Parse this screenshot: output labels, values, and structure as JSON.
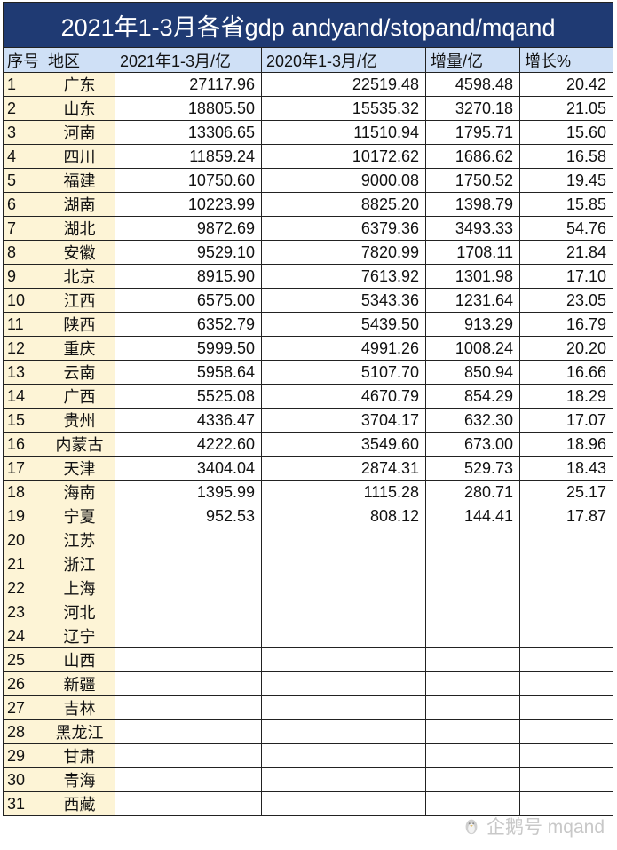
{
  "title": "2021年1-3月各省gdp andyand/stopand/mqand",
  "headers": [
    "序号",
    "地区",
    "2021年1-3月/亿",
    "2020年1-3月/亿",
    "增量/亿",
    "增长%"
  ],
  "rows": [
    {
      "idx": "1",
      "region": "广东",
      "v2021": "27117.96",
      "v2020": "22519.48",
      "inc": "4598.48",
      "growth": "20.42"
    },
    {
      "idx": "2",
      "region": "山东",
      "v2021": "18805.50",
      "v2020": "15535.32",
      "inc": "3270.18",
      "growth": "21.05"
    },
    {
      "idx": "3",
      "region": "河南",
      "v2021": "13306.65",
      "v2020": "11510.94",
      "inc": "1795.71",
      "growth": "15.60"
    },
    {
      "idx": "4",
      "region": "四川",
      "v2021": "11859.24",
      "v2020": "10172.62",
      "inc": "1686.62",
      "growth": "16.58"
    },
    {
      "idx": "5",
      "region": "福建",
      "v2021": "10750.60",
      "v2020": "9000.08",
      "inc": "1750.52",
      "growth": "19.45"
    },
    {
      "idx": "6",
      "region": "湖南",
      "v2021": "10223.99",
      "v2020": "8825.20",
      "inc": "1398.79",
      "growth": "15.85"
    },
    {
      "idx": "7",
      "region": "湖北",
      "v2021": "9872.69",
      "v2020": "6379.36",
      "inc": "3493.33",
      "growth": "54.76"
    },
    {
      "idx": "8",
      "region": "安徽",
      "v2021": "9529.10",
      "v2020": "7820.99",
      "inc": "1708.11",
      "growth": "21.84"
    },
    {
      "idx": "9",
      "region": "北京",
      "v2021": "8915.90",
      "v2020": "7613.92",
      "inc": "1301.98",
      "growth": "17.10"
    },
    {
      "idx": "10",
      "region": "江西",
      "v2021": "6575.00",
      "v2020": "5343.36",
      "inc": "1231.64",
      "growth": "23.05"
    },
    {
      "idx": "11",
      "region": "陕西",
      "v2021": "6352.79",
      "v2020": "5439.50",
      "inc": "913.29",
      "growth": "16.79"
    },
    {
      "idx": "12",
      "region": "重庆",
      "v2021": "5999.50",
      "v2020": "4991.26",
      "inc": "1008.24",
      "growth": "20.20"
    },
    {
      "idx": "13",
      "region": "云南",
      "v2021": "5958.64",
      "v2020": "5107.70",
      "inc": "850.94",
      "growth": "16.66"
    },
    {
      "idx": "14",
      "region": "广西",
      "v2021": "5525.08",
      "v2020": "4670.79",
      "inc": "854.29",
      "growth": "18.29"
    },
    {
      "idx": "15",
      "region": "贵州",
      "v2021": "4336.47",
      "v2020": "3704.17",
      "inc": "632.30",
      "growth": "17.07"
    },
    {
      "idx": "16",
      "region": "内蒙古",
      "v2021": "4222.60",
      "v2020": "3549.60",
      "inc": "673.00",
      "growth": "18.96"
    },
    {
      "idx": "17",
      "region": "天津",
      "v2021": "3404.04",
      "v2020": "2874.31",
      "inc": "529.73",
      "growth": "18.43"
    },
    {
      "idx": "18",
      "region": "海南",
      "v2021": "1395.99",
      "v2020": "1115.28",
      "inc": "280.71",
      "growth": "25.17"
    },
    {
      "idx": "19",
      "region": "宁夏",
      "v2021": "952.53",
      "v2020": "808.12",
      "inc": "144.41",
      "growth": "17.87"
    },
    {
      "idx": "20",
      "region": "江苏",
      "v2021": "",
      "v2020": "",
      "inc": "",
      "growth": ""
    },
    {
      "idx": "21",
      "region": "浙江",
      "v2021": "",
      "v2020": "",
      "inc": "",
      "growth": ""
    },
    {
      "idx": "22",
      "region": "上海",
      "v2021": "",
      "v2020": "",
      "inc": "",
      "growth": ""
    },
    {
      "idx": "23",
      "region": "河北",
      "v2021": "",
      "v2020": "",
      "inc": "",
      "growth": ""
    },
    {
      "idx": "24",
      "region": "辽宁",
      "v2021": "",
      "v2020": "",
      "inc": "",
      "growth": ""
    },
    {
      "idx": "25",
      "region": "山西",
      "v2021": "",
      "v2020": "",
      "inc": "",
      "growth": ""
    },
    {
      "idx": "26",
      "region": "新疆",
      "v2021": "",
      "v2020": "",
      "inc": "",
      "growth": ""
    },
    {
      "idx": "27",
      "region": "吉林",
      "v2021": "",
      "v2020": "",
      "inc": "",
      "growth": ""
    },
    {
      "idx": "28",
      "region": "黑龙江",
      "v2021": "",
      "v2020": "",
      "inc": "",
      "growth": ""
    },
    {
      "idx": "29",
      "region": "甘肃",
      "v2021": "",
      "v2020": "",
      "inc": "",
      "growth": ""
    },
    {
      "idx": "30",
      "region": "青海",
      "v2021": "",
      "v2020": "",
      "inc": "",
      "growth": ""
    },
    {
      "idx": "31",
      "region": "西藏",
      "v2021": "",
      "v2020": "",
      "inc": "",
      "growth": ""
    }
  ],
  "watermark": {
    "text": "企鹅号 mqand",
    "icon": "penguin-logo-icon"
  }
}
